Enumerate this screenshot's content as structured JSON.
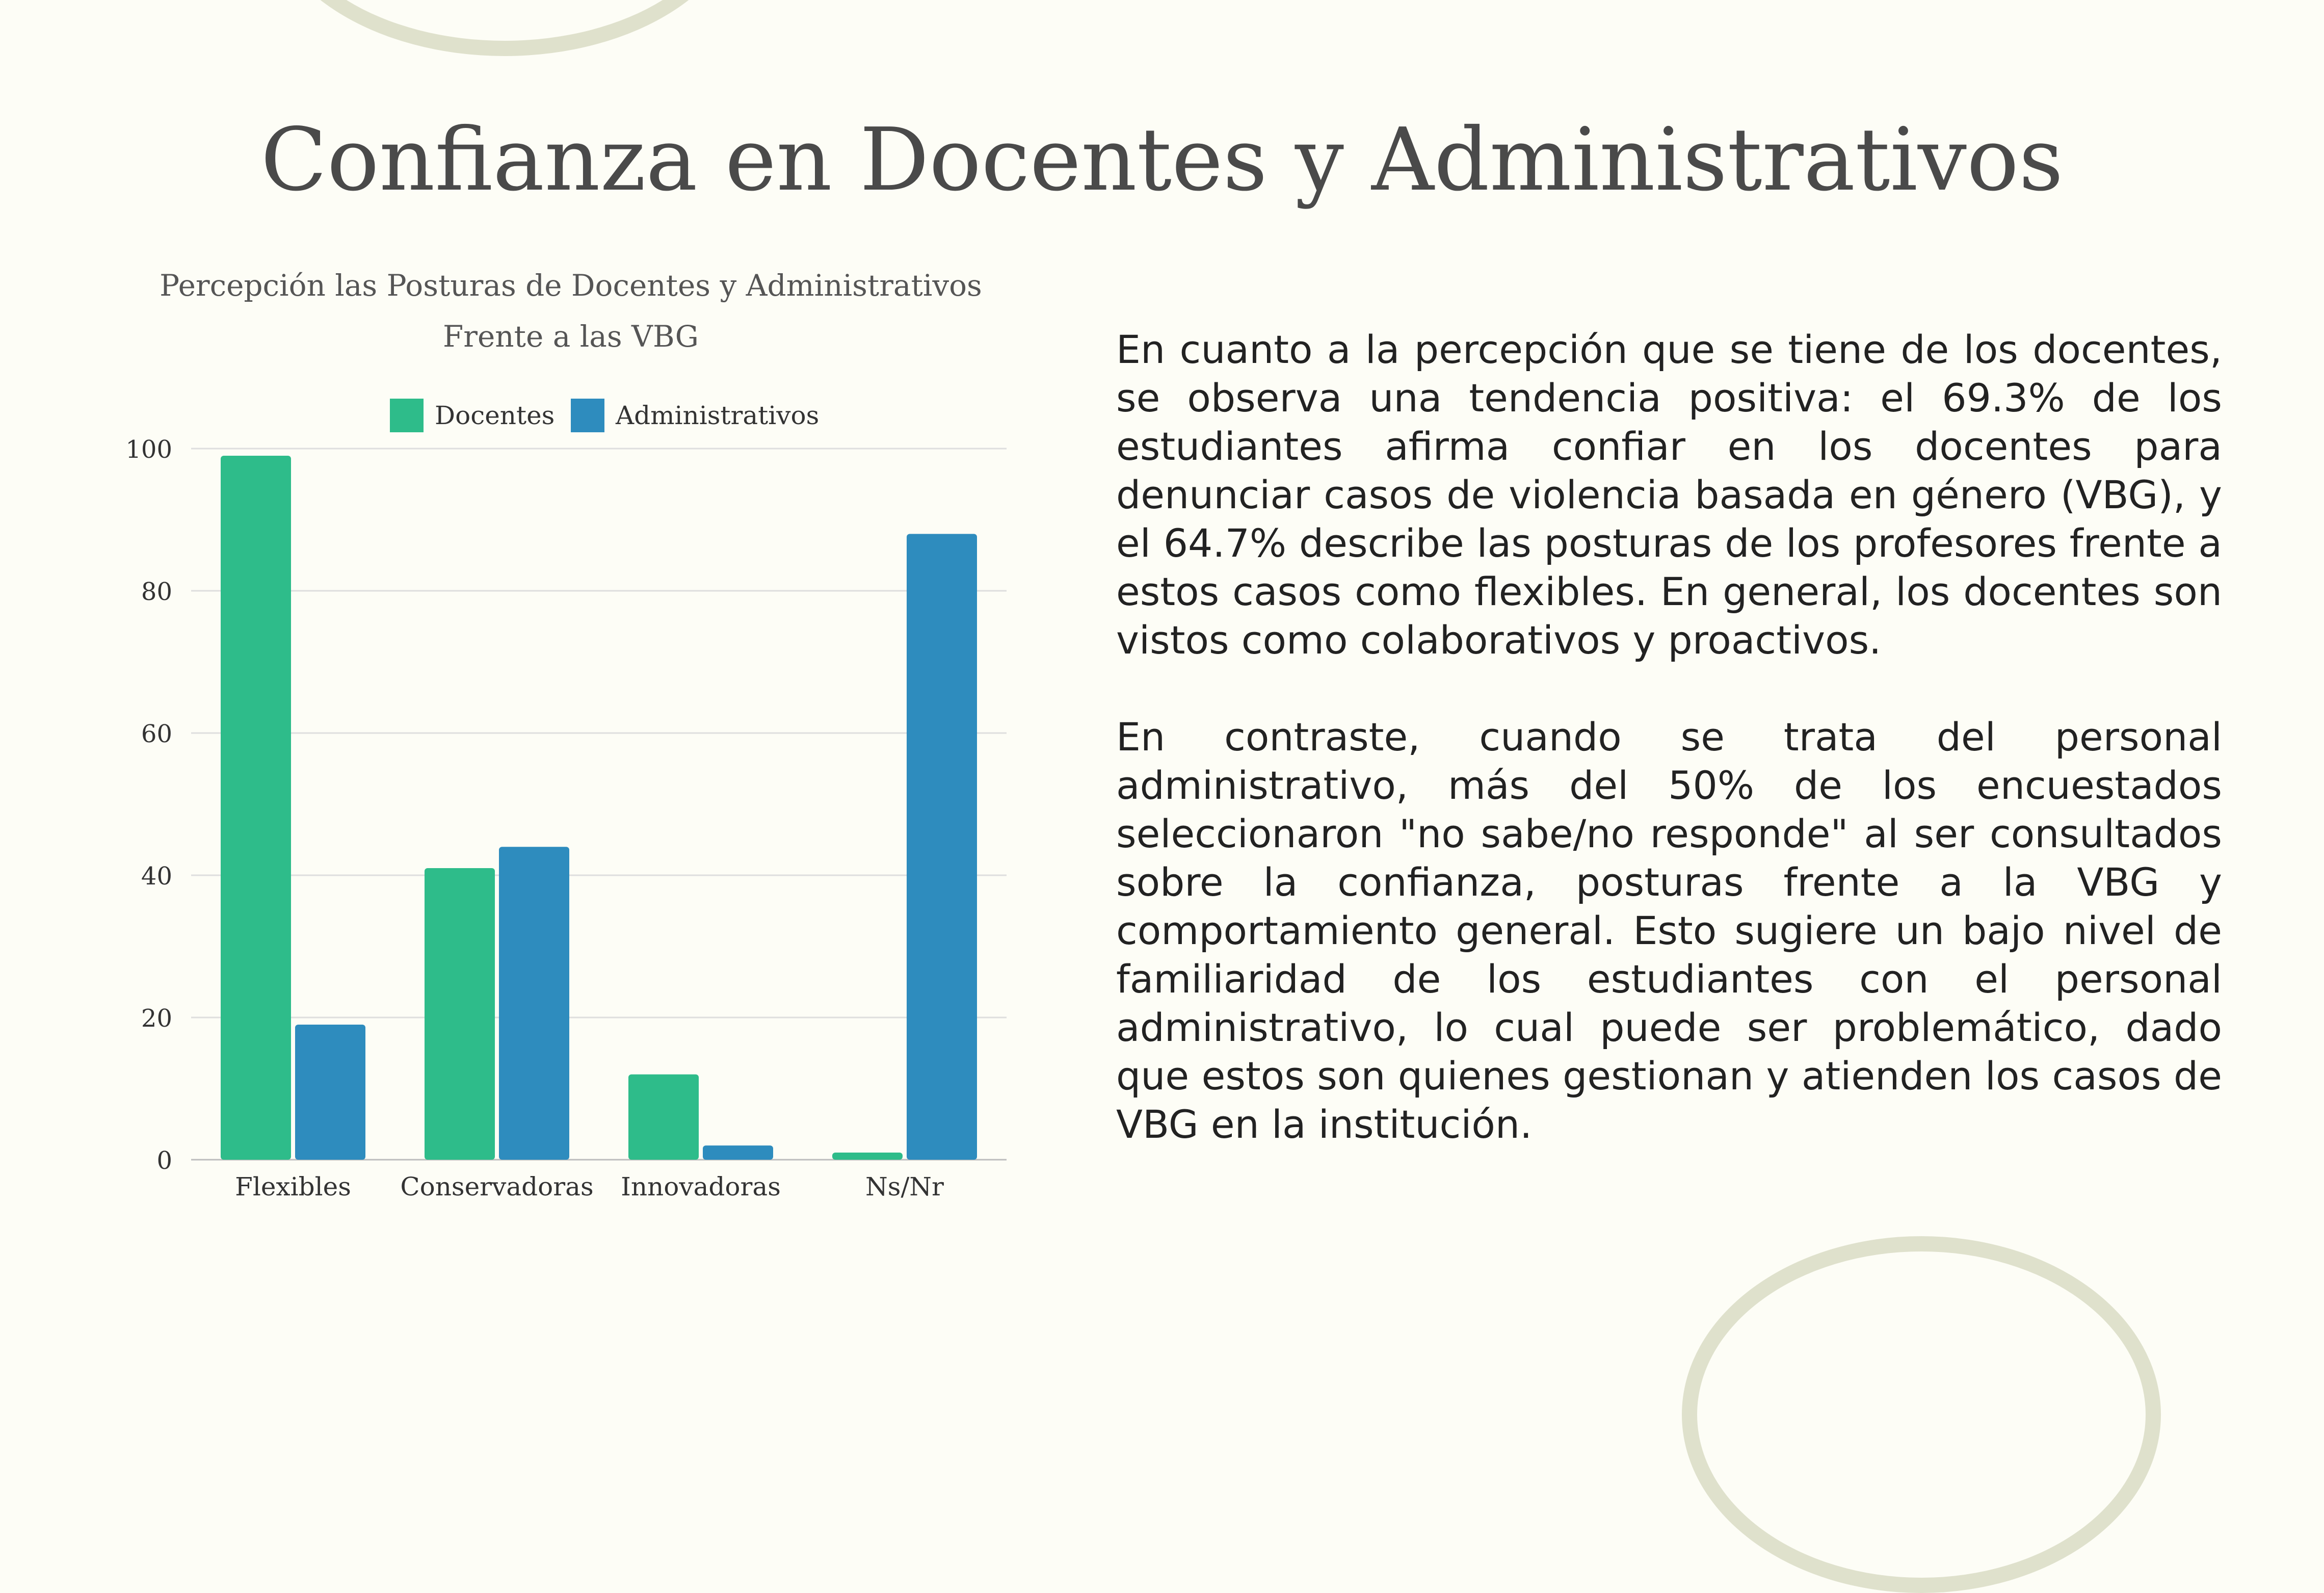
{
  "page": {
    "title": "Confianza en Docentes y Administrativos"
  },
  "colors": {
    "background": "#fdfdf6",
    "docentes": "#2ebc8a",
    "administrativos": "#2e8cbe",
    "decoration": "#dfe1cc"
  },
  "chart_data": {
    "type": "bar",
    "title_lines": [
      "Percepción las Posturas de Docentes y Administrativos",
      "Frente a las VBG"
    ],
    "categories": [
      "Flexibles",
      "Conservadoras",
      "Innovadoras",
      "Ns/Nr"
    ],
    "series": [
      {
        "name": "Docentes",
        "values": [
          99,
          41,
          12,
          1
        ],
        "color": "#2ebc8a"
      },
      {
        "name": "Administrativos",
        "values": [
          19,
          44,
          2,
          88
        ],
        "color": "#2e8cbe"
      }
    ],
    "ylim": [
      0,
      100
    ],
    "yticks": [
      0,
      20,
      40,
      60,
      80,
      100
    ],
    "grid": true,
    "legend_position": "top"
  },
  "text": {
    "paragraphs": [
      "En cuanto a la percepción que se tiene de los docentes, se observa una tendencia positiva: el 69.3% de los estudiantes afirma confiar en los docentes para denunciar casos de violencia basada en género (VBG), y el 64.7% describe las posturas de los profesores frente a estos casos como flexibles. En general, los docentes son vistos como colaborativos y proactivos.",
      "En contraste, cuando se trata del personal administrativo, más del 50% de los encuestados seleccionaron \"no sabe/no responde\" al ser consultados sobre la confianza, posturas frente a la VBG y comportamiento general. Esto sugiere un bajo nivel de familiaridad de los estudiantes con el personal administrativo, lo cual puede ser problemático, dado que estos son quienes gestionan y atienden los casos de VBG en la institución."
    ]
  }
}
